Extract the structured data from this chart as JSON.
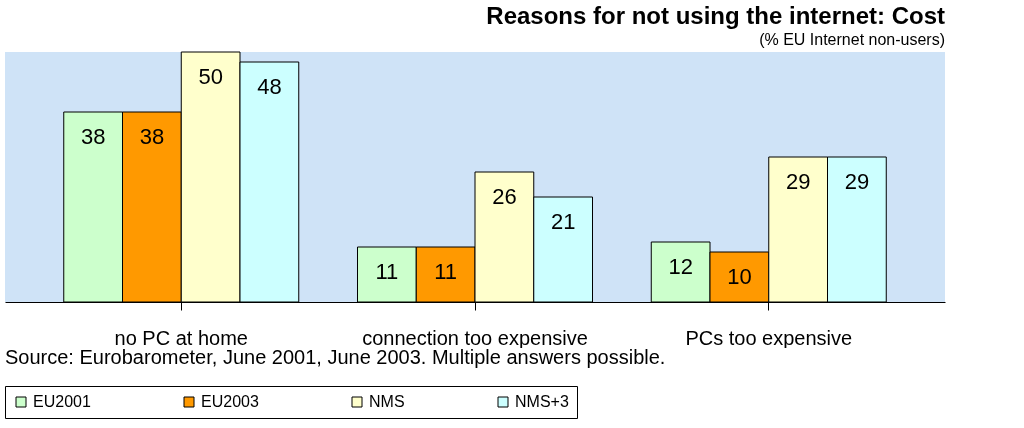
{
  "chart_data": {
    "type": "bar",
    "title": "Reasons for not using the internet: Cost",
    "subtitle": "(% EU Internet non-users)",
    "categories": [
      "no PC at home",
      "connection too expensive",
      "PCs too expensive"
    ],
    "series": [
      {
        "name": "EU2001",
        "color": "#ccffcc",
        "values": [
          38,
          11,
          12
        ]
      },
      {
        "name": "EU2003",
        "color": "#ff9900",
        "values": [
          38,
          11,
          10
        ]
      },
      {
        "name": "NMS",
        "color": "#ffffcc",
        "values": [
          50,
          26,
          29
        ]
      },
      {
        "name": "NMS+3",
        "color": "#ccffff",
        "values": [
          48,
          21,
          29
        ]
      }
    ],
    "ylim": [
      0,
      50
    ],
    "data_labels": true,
    "tick_labels": "x",
    "legend": "bottom",
    "annotations": [
      "Source: Eurobarometer, June 2001, June 2003. Multiple answers possible."
    ]
  }
}
